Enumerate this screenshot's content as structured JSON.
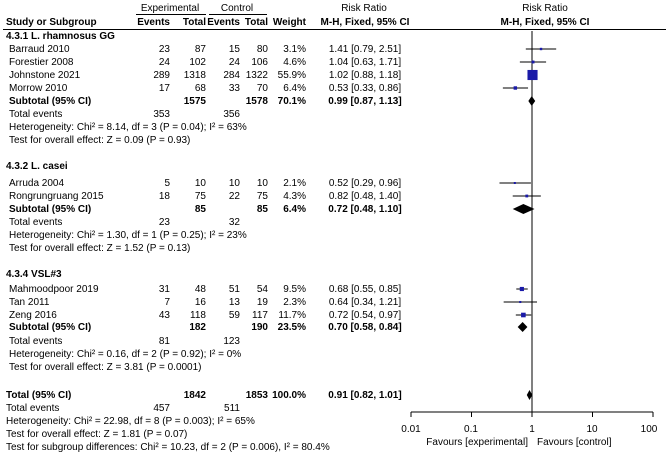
{
  "header": {
    "group_experimental": "Experimental",
    "group_control": "Control",
    "col_risk_ratio": "Risk Ratio",
    "plot_title": "Risk Ratio",
    "study_label": "Study or Subgroup",
    "events": "Events",
    "total": "Total",
    "weight": "Weight",
    "method": "M-H, Fixed, 95% CI",
    "plot_method": "M-H, Fixed, 95% CI"
  },
  "subgroups": [
    {
      "title": "4.3.1 L. rhamnosus GG",
      "studies": [
        {
          "name": "Barraud 2010",
          "e_events": "23",
          "e_total": "87",
          "c_events": "15",
          "c_total": "80",
          "weight": "3.1%",
          "ci_text": "1.41 [0.79, 2.51]"
        },
        {
          "name": "Forestier 2008",
          "e_events": "24",
          "e_total": "102",
          "c_events": "24",
          "c_total": "106",
          "weight": "4.6%",
          "ci_text": "1.04 [0.63, 1.71]"
        },
        {
          "name": "Johnstone 2021",
          "e_events": "289",
          "e_total": "1318",
          "c_events": "284",
          "c_total": "1322",
          "weight": "55.9%",
          "ci_text": "1.02 [0.88, 1.18]"
        },
        {
          "name": "Morrow 2010",
          "e_events": "17",
          "e_total": "68",
          "c_events": "33",
          "c_total": "70",
          "weight": "6.4%",
          "ci_text": "0.53 [0.33, 0.86]"
        }
      ],
      "subtotal": {
        "label": "Subtotal (95% CI)",
        "e_total": "1575",
        "c_total": "1578",
        "weight": "70.1%",
        "ci_text": "0.99 [0.87, 1.13]"
      },
      "total_events": {
        "label": "Total events",
        "e": "353",
        "c": "356"
      },
      "heterogeneity": "Heterogeneity: Chi² = 8.14, df = 3 (P = 0.04); I² = 63%",
      "overall": "Test for overall effect: Z = 0.09 (P = 0.93)"
    },
    {
      "title": "4.3.2 L. casei",
      "studies": [
        {
          "name": "Arruda 2004",
          "e_events": "5",
          "e_total": "10",
          "c_events": "10",
          "c_total": "10",
          "weight": "2.1%",
          "ci_text": "0.52 [0.29, 0.96]"
        },
        {
          "name": "Rongrungruang 2015",
          "e_events": "18",
          "e_total": "75",
          "c_events": "22",
          "c_total": "75",
          "weight": "4.3%",
          "ci_text": "0.82 [0.48, 1.40]"
        }
      ],
      "subtotal": {
        "label": "Subtotal (95% CI)",
        "e_total": "85",
        "c_total": "85",
        "weight": "6.4%",
        "ci_text": "0.72 [0.48, 1.10]"
      },
      "total_events": {
        "label": "Total events",
        "e": "23",
        "c": "32"
      },
      "heterogeneity": "Heterogeneity: Chi² = 1.30, df = 1 (P = 0.25); I² = 23%",
      "overall": "Test for overall effect: Z = 1.52 (P = 0.13)"
    },
    {
      "title": "4.3.4 VSL#3",
      "studies": [
        {
          "name": "Mahmoodpoor 2019",
          "e_events": "31",
          "e_total": "48",
          "c_events": "51",
          "c_total": "54",
          "weight": "9.5%",
          "ci_text": "0.68 [0.55, 0.85]"
        },
        {
          "name": "Tan 2011",
          "e_events": "7",
          "e_total": "16",
          "c_events": "13",
          "c_total": "19",
          "weight": "2.3%",
          "ci_text": "0.64 [0.34, 1.21]"
        },
        {
          "name": "Zeng 2016",
          "e_events": "43",
          "e_total": "118",
          "c_events": "59",
          "c_total": "117",
          "weight": "11.7%",
          "ci_text": "0.72 [0.54, 0.97]"
        }
      ],
      "subtotal": {
        "label": "Subtotal (95% CI)",
        "e_total": "182",
        "c_total": "190",
        "weight": "23.5%",
        "ci_text": "0.70 [0.58, 0.84]"
      },
      "total_events": {
        "label": "Total events",
        "e": "81",
        "c": "123"
      },
      "heterogeneity": "Heterogeneity: Chi² = 0.16, df = 2 (P = 0.92); I² = 0%",
      "overall": "Test for overall effect: Z = 3.81 (P = 0.0001)"
    }
  ],
  "total": {
    "label": "Total (95% CI)",
    "e_total": "1842",
    "c_total": "1853",
    "weight": "100.0%",
    "ci_text": "0.91 [0.82, 1.01]",
    "events_label": "Total events",
    "e_events": "457",
    "c_events": "511",
    "heterogeneity": "Heterogeneity: Chi² = 22.98, df = 8 (P = 0.003); I² = 65%",
    "overall": "Test for overall effect: Z = 1.81 (P = 0.07)",
    "subgroup_diff": "Test for subgroup differences: Chi² = 10.23, df = 2 (P = 0.006), I² = 80.4%"
  },
  "axis": {
    "ticks": [
      "0.01",
      "0.1",
      "1",
      "10",
      "100"
    ],
    "favours_left": "Favours [experimental]",
    "favours_right": "Favours [control]"
  },
  "colors": {
    "study_marker": "#1a1aa8",
    "diamond": "#000000"
  },
  "chart_data": {
    "type": "scatter",
    "scale": "log",
    "xlim": [
      0.01,
      100
    ],
    "reference_line": 1,
    "points": [
      {
        "study": "Barraud 2010",
        "rr": 1.41,
        "lo": 0.79,
        "hi": 2.51,
        "weight": 3.1
      },
      {
        "study": "Forestier 2008",
        "rr": 1.04,
        "lo": 0.63,
        "hi": 1.71,
        "weight": 4.6
      },
      {
        "study": "Johnstone 2021",
        "rr": 1.02,
        "lo": 0.88,
        "hi": 1.18,
        "weight": 55.9
      },
      {
        "study": "Morrow 2010",
        "rr": 0.53,
        "lo": 0.33,
        "hi": 0.86,
        "weight": 6.4
      },
      {
        "study": "Arruda 2004",
        "rr": 0.52,
        "lo": 0.29,
        "hi": 0.96,
        "weight": 2.1
      },
      {
        "study": "Rongrungruang 2015",
        "rr": 0.82,
        "lo": 0.48,
        "hi": 1.4,
        "weight": 4.3
      },
      {
        "study": "Mahmoodpoor 2019",
        "rr": 0.68,
        "lo": 0.55,
        "hi": 0.85,
        "weight": 9.5
      },
      {
        "study": "Tan 2011",
        "rr": 0.64,
        "lo": 0.34,
        "hi": 1.21,
        "weight": 2.3
      },
      {
        "study": "Zeng 2016",
        "rr": 0.72,
        "lo": 0.54,
        "hi": 0.97,
        "weight": 11.7
      }
    ],
    "subtotals": [
      {
        "group": "4.3.1 L. rhamnosus GG",
        "rr": 0.99,
        "lo": 0.87,
        "hi": 1.13
      },
      {
        "group": "4.3.2 L. casei",
        "rr": 0.72,
        "lo": 0.48,
        "hi": 1.1
      },
      {
        "group": "4.3.4 VSL#3",
        "rr": 0.7,
        "lo": 0.58,
        "hi": 0.84
      }
    ],
    "overall": {
      "rr": 0.91,
      "lo": 0.82,
      "hi": 1.01
    }
  }
}
